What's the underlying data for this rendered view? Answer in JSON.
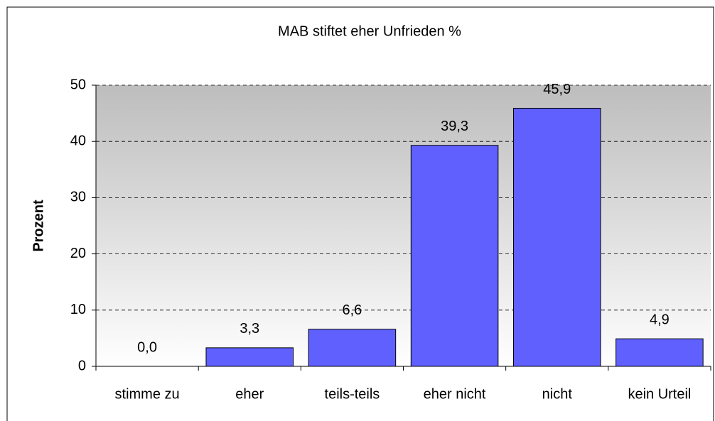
{
  "chart_data": {
    "type": "bar",
    "title": "MAB stiftet eher Unfrieden %",
    "y_label": "Prozent",
    "categories": [
      "stimme zu",
      "eher",
      "teils-teils",
      "eher nicht",
      "nicht",
      "kein Urteil"
    ],
    "values": [
      0.0,
      3.3,
      6.6,
      39.3,
      45.9,
      4.9
    ],
    "value_labels": [
      "0,0",
      "3,3",
      "6,6",
      "39,3",
      "45,9",
      "4,9"
    ],
    "color": "#6060ff",
    "ylim": [
      0,
      50
    ],
    "yticks": [
      0,
      10,
      20,
      30,
      40,
      50
    ],
    "grid": true
  }
}
